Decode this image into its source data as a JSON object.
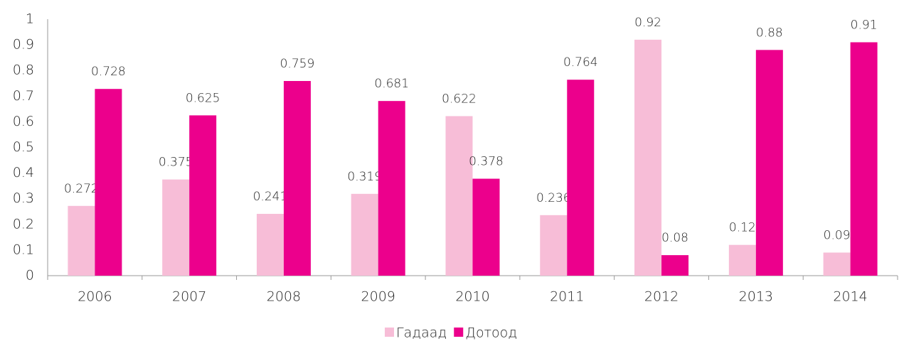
{
  "chart_data": {
    "type": "bar",
    "categories": [
      "2006",
      "2007",
      "2008",
      "2009",
      "2010",
      "2011",
      "2012",
      "2013",
      "2014"
    ],
    "series": [
      {
        "name": "Гадаад",
        "color": "#f7bdd7",
        "values": [
          0.272,
          0.375,
          0.241,
          0.319,
          0.622,
          0.236,
          0.92,
          0.12,
          0.09
        ]
      },
      {
        "name": "Дотоод",
        "color": "#ec008c",
        "values": [
          0.728,
          0.625,
          0.759,
          0.681,
          0.378,
          0.764,
          0.08,
          0.88,
          0.91
        ]
      }
    ],
    "ylim": [
      0,
      1
    ],
    "yticks": [
      0,
      0.1,
      0.2,
      0.3,
      0.4,
      0.5,
      0.6,
      0.7,
      0.8,
      0.9,
      1
    ],
    "grid": false,
    "legend": "bottom"
  }
}
